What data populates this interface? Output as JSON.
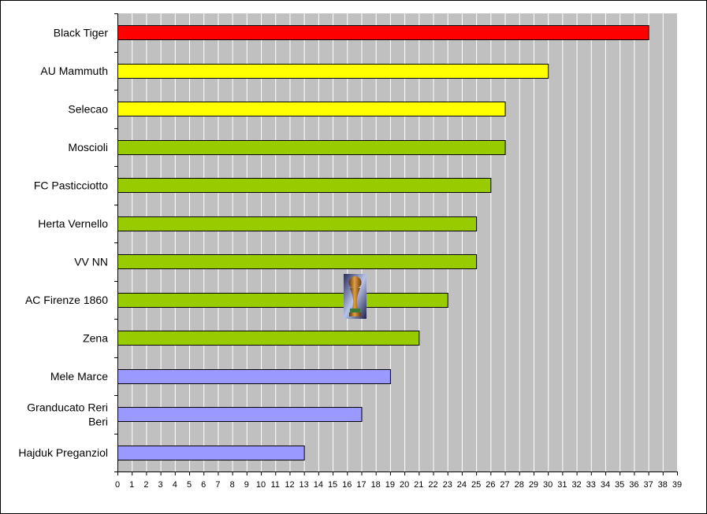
{
  "chart_data": {
    "type": "bar",
    "orientation": "horizontal",
    "categories": [
      "Black Tiger",
      "AU Mammuth",
      "Selecao",
      "Moscioli",
      "FC Pasticciotto",
      "Herta Vernello",
      "VV NN",
      "AC Firenze 1860",
      "Zena",
      "Mele Marce",
      "Granducato Reri Beri",
      "Hajduk Preganziol"
    ],
    "values": [
      37,
      30,
      27,
      27,
      26,
      25,
      25,
      23,
      21,
      19,
      17,
      13
    ],
    "bar_colors": [
      "#ff0000",
      "#ffff00",
      "#ffff00",
      "#99cc00",
      "#99cc00",
      "#99cc00",
      "#99cc00",
      "#99cc00",
      "#99cc00",
      "#9999ff",
      "#9999ff",
      "#9999ff"
    ],
    "xlim": [
      0,
      39
    ],
    "xticks": [
      0,
      1,
      2,
      3,
      4,
      5,
      6,
      7,
      8,
      9,
      10,
      11,
      12,
      13,
      14,
      15,
      16,
      17,
      18,
      19,
      20,
      21,
      22,
      23,
      24,
      25,
      26,
      27,
      28,
      29,
      30,
      31,
      32,
      33,
      34,
      35,
      36,
      37,
      38,
      39
    ],
    "grid": true,
    "plot_background": "#c0c0c0",
    "gridline_color": "#ffffff",
    "title": "",
    "xlabel": "",
    "ylabel": "",
    "legend": "none",
    "decoration_icon": "trophy-icon"
  }
}
